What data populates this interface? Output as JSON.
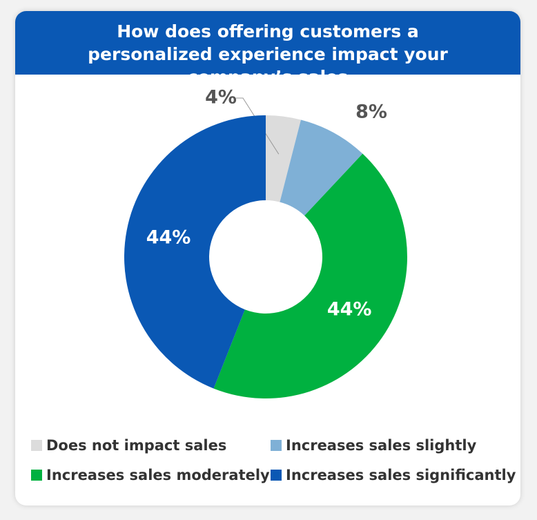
{
  "chart_data": {
    "type": "donut",
    "title": "How does offering customers a personalized experience impact your company’s sales",
    "categories": [
      "Does not impact sales",
      "Increases sales slightly",
      "Increases sales moderately",
      "Increases sales significantly"
    ],
    "values": [
      4,
      8,
      44,
      44
    ],
    "value_labels": [
      "4%",
      "8%",
      "44%",
      "44%"
    ],
    "colors": [
      "#dcdcdc",
      "#7fb0d6",
      "#00b140",
      "#0a58b4"
    ]
  }
}
